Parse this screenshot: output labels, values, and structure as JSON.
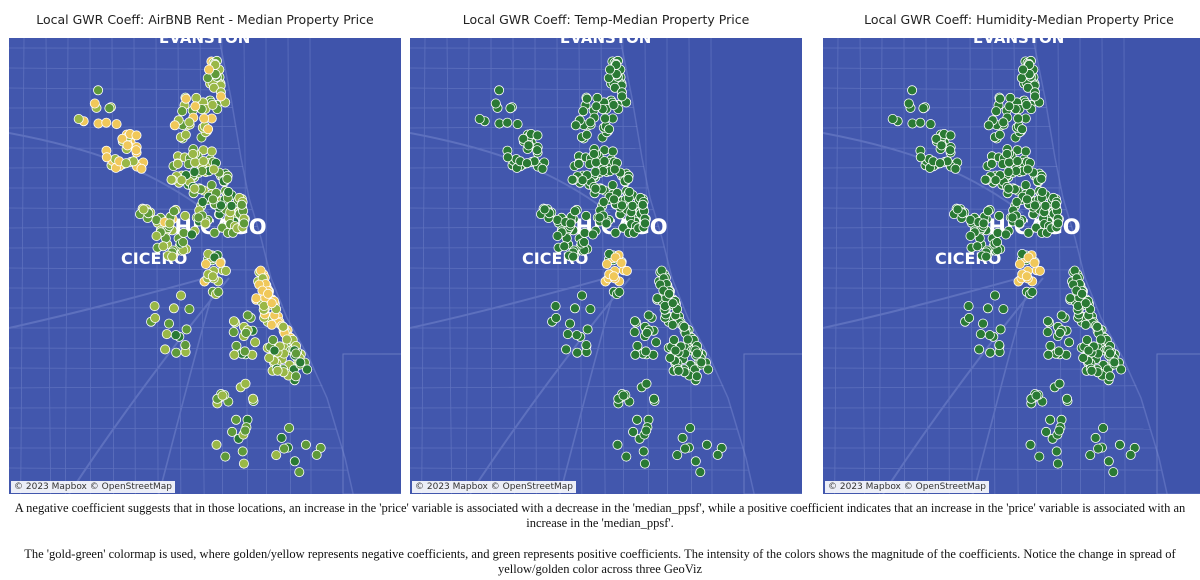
{
  "panels": [
    {
      "title": "Local GWR Coeff: AirBNB Rent - Median Property Price",
      "attribution": "© 2023 Mapbox  © OpenStreetMap",
      "scheme": "mixed"
    },
    {
      "title": "Local GWR Coeff: Temp-Median Property Price",
      "attribution": "© 2023 Mapbox  © OpenStreetMap",
      "scheme": "green"
    },
    {
      "title": "Local GWR Coeff: Humidity-Median Property Price",
      "attribution": "© 2023 Mapbox  © OpenStreetMap",
      "scheme": "green"
    }
  ],
  "map_labels": {
    "evanston": "EVANSTON",
    "chicago": "CHICAGO",
    "cicero": "CICERO"
  },
  "colors": {
    "water": "#3f54ab",
    "land": "#4257ad",
    "roads": "#7486cc",
    "gold": "#f0c85a",
    "light_green": "#9ab847",
    "mid_green": "#5f9a3a",
    "dark_green": "#2a7a34"
  },
  "captions": {
    "p1": "A negative coefficient suggests that in those locations, an increase in the 'price' variable is associated with a decrease in the 'median_ppsf', while a positive coefficient indicates that an increase in the 'price' variable is associated with an increase in the 'median_ppsf'.",
    "p2": "The 'gold-green' colormap is used, where golden/yellow represents negative coefficients, and green represents positive coefficients. The intensity of the colors shows the magnitude of the coefficients. Notice the change in spread of yellow/golden color across three GeoViz"
  }
}
